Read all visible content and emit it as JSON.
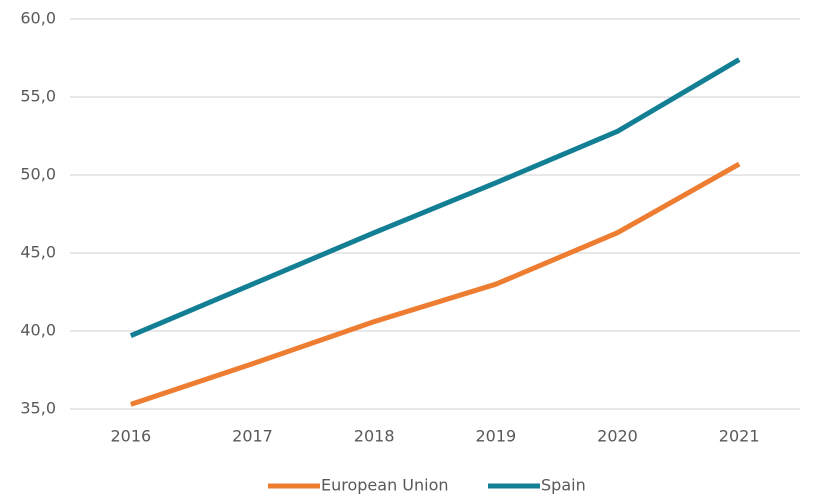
{
  "chart_data": {
    "type": "line",
    "categories": [
      "2016",
      "2017",
      "2018",
      "2019",
      "2020",
      "2021"
    ],
    "series": [
      {
        "name": "European Union",
        "color": "#ed7d31",
        "values": [
          35.3,
          37.9,
          40.6,
          43.0,
          46.3,
          50.7
        ]
      },
      {
        "name": "Spain",
        "color": "#137f95",
        "values": [
          39.7,
          43.0,
          46.3,
          49.5,
          52.8,
          57.4
        ]
      }
    ],
    "ylim": [
      35,
      60
    ],
    "yticks": [
      {
        "value": 35,
        "label": "35,0"
      },
      {
        "value": 40,
        "label": "40,0"
      },
      {
        "value": 45,
        "label": "45,0"
      },
      {
        "value": 50,
        "label": "50,0"
      },
      {
        "value": 55,
        "label": "55,0"
      },
      {
        "value": 60,
        "label": "60,0"
      }
    ],
    "grid": true,
    "legend": "bottom"
  }
}
